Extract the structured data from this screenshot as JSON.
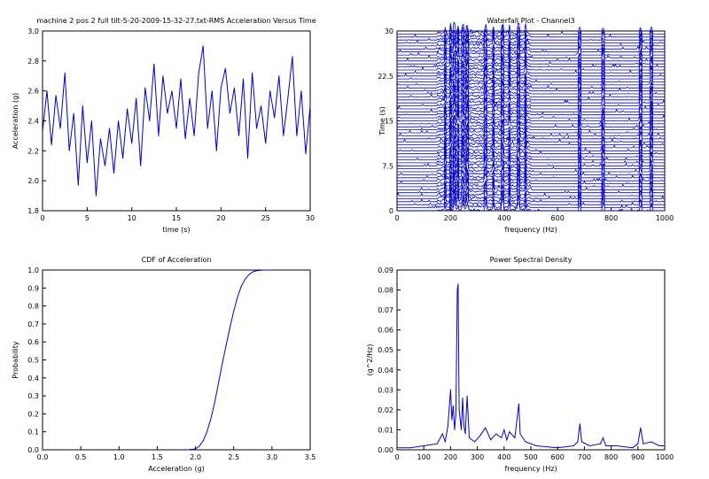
{
  "chart_data": [
    {
      "type": "line",
      "title": "machine 2 pos 2 full tilt-5-20-2009-15-32-27.txt-RMS Acceleration Versus Time",
      "xlabel": "time (s)",
      "ylabel": "Acceleration (g)",
      "xlim": [
        0,
        30
      ],
      "ylim": [
        1.8,
        3.0
      ],
      "xticks": [
        "0",
        "5",
        "10",
        "15",
        "20",
        "25",
        "30"
      ],
      "yticks": [
        "1.8",
        "2.0",
        "2.2",
        "2.4",
        "2.6",
        "2.8",
        "3.0"
      ],
      "grid": false,
      "series": [
        {
          "color": "#0000cc",
          "x": [
            0.0,
            0.5,
            1.0,
            1.5,
            2.0,
            2.5,
            3.0,
            3.5,
            4.0,
            4.5,
            5.0,
            5.5,
            6.0,
            6.5,
            7.0,
            7.5,
            8.0,
            8.5,
            9.0,
            9.5,
            10.0,
            10.5,
            11.0,
            11.5,
            12.0,
            12.5,
            13.0,
            13.5,
            14.0,
            14.5,
            15.0,
            15.5,
            16.0,
            16.5,
            17.0,
            17.5,
            18.0,
            18.5,
            19.0,
            19.5,
            20.0,
            20.5,
            21.0,
            21.5,
            22.0,
            22.5,
            23.0,
            23.5,
            24.0,
            24.5,
            25.0,
            25.5,
            26.0,
            26.5,
            27.0,
            27.5,
            28.0,
            28.5,
            29.0,
            29.5,
            30.0
          ],
          "y": [
            2.33,
            2.6,
            2.24,
            2.57,
            2.35,
            2.72,
            2.2,
            2.45,
            1.97,
            2.5,
            2.12,
            2.4,
            1.9,
            2.28,
            2.1,
            2.35,
            2.05,
            2.4,
            2.15,
            2.48,
            2.25,
            2.55,
            2.1,
            2.62,
            2.4,
            2.78,
            2.3,
            2.7,
            2.45,
            2.6,
            2.35,
            2.68,
            2.28,
            2.55,
            2.3,
            2.72,
            2.9,
            2.35,
            2.6,
            2.2,
            2.62,
            2.75,
            2.45,
            2.62,
            2.3,
            2.68,
            2.15,
            2.72,
            2.35,
            2.5,
            2.25,
            2.6,
            2.42,
            2.7,
            2.3,
            2.55,
            2.83,
            2.3,
            2.6,
            2.18,
            2.5
          ]
        }
      ]
    },
    {
      "type": "line",
      "title": "Waterfall Plot - Channel3",
      "xlabel": "frequency (Hz)",
      "ylabel": "Time (s)",
      "xlim": [
        0,
        1000
      ],
      "ylim": [
        0,
        30
      ],
      "xticks": [
        "0",
        "200",
        "400",
        "600",
        "800",
        "1000"
      ],
      "yticks": [
        "0",
        "7.5",
        "15",
        "22.5",
        "30"
      ],
      "grid": false,
      "traces_count": 60,
      "peak_frequencies": [
        180,
        200,
        215,
        228,
        245,
        262,
        330,
        360,
        395,
        420,
        455,
        480,
        683,
        770,
        910,
        950
      ],
      "series": [
        {
          "color": "#0000cc"
        }
      ]
    },
    {
      "type": "line",
      "title": "CDF of Acceleration",
      "xlabel": "Acceleration (g)",
      "ylabel": "Probability",
      "xlim": [
        0,
        3.5
      ],
      "ylim": [
        0,
        1.0
      ],
      "xticks": [
        "0.0",
        "0.5",
        "1.0",
        "1.5",
        "2.0",
        "2.5",
        "3.0",
        "3.5"
      ],
      "yticks": [
        "0.0",
        "0.1",
        "0.2",
        "0.3",
        "0.4",
        "0.5",
        "0.6",
        "0.7",
        "0.8",
        "0.9",
        "1.0"
      ],
      "grid": false,
      "series": [
        {
          "color": "#0000cc",
          "x": [
            1.9,
            2.0,
            2.05,
            2.1,
            2.15,
            2.2,
            2.25,
            2.3,
            2.35,
            2.4,
            2.45,
            2.5,
            2.55,
            2.6,
            2.65,
            2.7,
            2.75,
            2.8,
            2.85,
            2.9,
            3.0
          ],
          "y": [
            0.0,
            0.005,
            0.02,
            0.05,
            0.1,
            0.17,
            0.26,
            0.37,
            0.48,
            0.58,
            0.68,
            0.77,
            0.85,
            0.91,
            0.95,
            0.975,
            0.99,
            0.996,
            0.999,
            1.0,
            1.0
          ]
        }
      ]
    },
    {
      "type": "line",
      "title": "Power Spectral Density",
      "xlabel": "frequency (Hz)",
      "ylabel": "(g^2/Hz)",
      "xlim": [
        0,
        1000
      ],
      "ylim": [
        0,
        0.09
      ],
      "xticks": [
        "0",
        "100",
        "200",
        "300",
        "400",
        "500",
        "600",
        "700",
        "800",
        "900",
        "1000"
      ],
      "yticks": [
        "0.00",
        "0.01",
        "0.02",
        "0.03",
        "0.04",
        "0.05",
        "0.06",
        "0.07",
        "0.08",
        "0.09"
      ],
      "grid": false,
      "series": [
        {
          "color": "#0000cc",
          "x": [
            0,
            50,
            100,
            150,
            170,
            180,
            190,
            200,
            205,
            210,
            215,
            220,
            225,
            228,
            232,
            240,
            245,
            250,
            255,
            262,
            270,
            290,
            310,
            330,
            350,
            370,
            390,
            400,
            410,
            420,
            440,
            455,
            460,
            480,
            520,
            600,
            660,
            675,
            683,
            690,
            720,
            760,
            770,
            780,
            820,
            880,
            900,
            910,
            920,
            950,
            980,
            1000
          ],
          "y": [
            0.001,
            0.001,
            0.002,
            0.003,
            0.008,
            0.004,
            0.012,
            0.03,
            0.015,
            0.022,
            0.01,
            0.018,
            0.08,
            0.083,
            0.02,
            0.01,
            0.026,
            0.012,
            0.008,
            0.027,
            0.006,
            0.004,
            0.007,
            0.011,
            0.005,
            0.008,
            0.006,
            0.01,
            0.005,
            0.009,
            0.006,
            0.023,
            0.008,
            0.004,
            0.002,
            0.001,
            0.002,
            0.004,
            0.013,
            0.004,
            0.002,
            0.003,
            0.006,
            0.002,
            0.002,
            0.001,
            0.003,
            0.011,
            0.003,
            0.004,
            0.002,
            0.002
          ]
        }
      ]
    }
  ]
}
